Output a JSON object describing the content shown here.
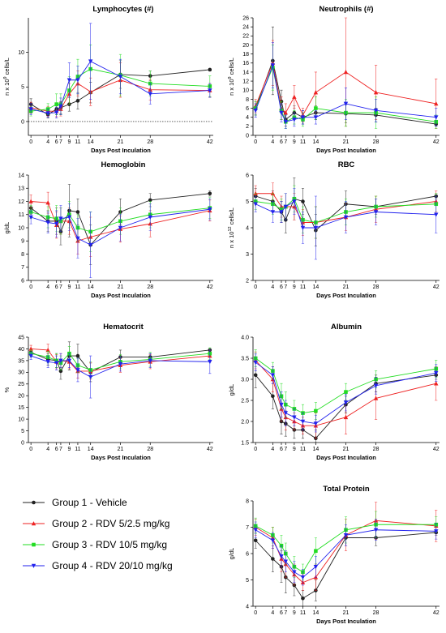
{
  "x_label": "Days Post Inculation",
  "colors": {
    "g1": "#222222",
    "g2": "#ee2222",
    "g3": "#22dd22",
    "g4": "#2222ee"
  },
  "legend": [
    {
      "key": "g1",
      "label": "Group 1 - Vehicle",
      "marker": "circle"
    },
    {
      "key": "g2",
      "label": "Group 2 - RDV 5/2.5 mg/kg",
      "marker": "triangle"
    },
    {
      "key": "g3",
      "label": "Group 3 - RDV 10/5 mg/kg",
      "marker": "square"
    },
    {
      "key": "g4",
      "label": "Group 4 - RDV 20/10 mg/kg",
      "marker": "triangle-down"
    }
  ],
  "chart_data": [
    {
      "id": "lymph",
      "type": "line",
      "title": "Lymphocytes (#)",
      "ylabel": "n x 10^9 cells/L",
      "x": [
        0,
        4,
        6,
        7,
        9,
        11,
        14,
        21,
        28,
        42
      ],
      "xticks": [
        0,
        4,
        6,
        7,
        9,
        11,
        14,
        21,
        28,
        42
      ],
      "ylim": [
        -2,
        15
      ],
      "yticks": [
        0,
        5,
        10
      ],
      "baseline": 0,
      "series": [
        {
          "key": "g1",
          "values": [
            2.5,
            1.0,
            1.8,
            2.0,
            2.5,
            3.0,
            4.2,
            6.8,
            6.6,
            7.5
          ],
          "err": [
            0.8,
            0.5,
            0.8,
            0.9,
            1.0,
            1.2,
            1.5,
            2.0,
            0.7,
            0.2
          ]
        },
        {
          "key": "g2",
          "values": [
            2.0,
            1.5,
            1.5,
            1.8,
            4.0,
            5.5,
            4.3,
            6.0,
            4.6,
            4.5
          ],
          "err": [
            0.8,
            0.7,
            0.8,
            1.0,
            1.5,
            1.8,
            2.0,
            2.5,
            1.5,
            1.0
          ]
        },
        {
          "key": "g3",
          "values": [
            1.5,
            1.8,
            2.5,
            2.5,
            4.5,
            6.5,
            7.6,
            6.7,
            5.5,
            5.1
          ],
          "err": [
            0.7,
            0.8,
            1.5,
            1.5,
            2.0,
            2.5,
            3.5,
            3.0,
            1.8,
            1.5
          ]
        },
        {
          "key": "g4",
          "values": [
            1.8,
            1.2,
            1.3,
            2.2,
            6.0,
            6.0,
            8.7,
            6.5,
            4.0,
            4.5
          ],
          "err": [
            0.8,
            0.6,
            0.8,
            1.2,
            2.5,
            2.0,
            5.5,
            2.5,
            1.5,
            1.0
          ]
        }
      ]
    },
    {
      "id": "neut",
      "type": "line",
      "title": "Neutrophils (#)",
      "ylabel": "n x 10^9 cells/L",
      "x": [
        0,
        4,
        6,
        7,
        9,
        11,
        14,
        21,
        28,
        42
      ],
      "xticks": [
        0,
        4,
        6,
        7,
        9,
        11,
        14,
        21,
        28,
        42
      ],
      "ylim": [
        0,
        26
      ],
      "yticks": [
        0,
        2,
        4,
        6,
        8,
        10,
        12,
        14,
        16,
        18,
        20,
        22,
        24,
        26
      ],
      "baseline": null,
      "series": [
        {
          "key": "g1",
          "values": [
            6.0,
            16.5,
            7.5,
            3.5,
            5.0,
            4.0,
            5.0,
            4.8,
            4.5,
            2.5
          ],
          "err": [
            1.5,
            7.5,
            2.5,
            1.5,
            1.5,
            1.5,
            1.5,
            2.0,
            1.5,
            0.5
          ]
        },
        {
          "key": "g2",
          "values": [
            6.5,
            16.0,
            6.0,
            5.0,
            8.5,
            4.5,
            9.5,
            14.0,
            9.5,
            7.0
          ],
          "err": [
            1.5,
            5.0,
            2.5,
            2.0,
            2.5,
            1.5,
            4.5,
            12.0,
            6.0,
            5.5
          ]
        },
        {
          "key": "g3",
          "values": [
            6.0,
            15.0,
            5.5,
            3.0,
            4.0,
            3.5,
            6.0,
            5.0,
            5.0,
            3.0
          ],
          "err": [
            1.5,
            5.0,
            2.0,
            1.5,
            1.5,
            1.5,
            2.5,
            3.0,
            3.5,
            1.5
          ]
        },
        {
          "key": "g4",
          "values": [
            5.5,
            15.5,
            5.0,
            3.0,
            3.5,
            4.0,
            4.0,
            7.0,
            5.5,
            4.0
          ],
          "err": [
            1.5,
            5.0,
            2.0,
            1.5,
            1.5,
            1.5,
            1.5,
            3.5,
            2.5,
            2.0
          ]
        }
      ]
    },
    {
      "id": "hgb",
      "type": "line",
      "title": "Hemoglobin",
      "ylabel": "g/dL",
      "x": [
        0,
        4,
        6,
        7,
        9,
        11,
        14,
        21,
        28,
        42
      ],
      "xticks": [
        0,
        4,
        6,
        7,
        9,
        11,
        14,
        21,
        28,
        42
      ],
      "ylim": [
        6,
        14
      ],
      "yticks": [
        6,
        7,
        8,
        9,
        10,
        11,
        12,
        13,
        14
      ],
      "baseline": null,
      "series": [
        {
          "key": "g1",
          "values": [
            11.5,
            10.5,
            10.5,
            9.7,
            11.3,
            11.2,
            8.7,
            11.2,
            12.1,
            12.6
          ],
          "err": [
            0.5,
            0.8,
            1.0,
            1.0,
            2.0,
            1.0,
            1.5,
            1.0,
            0.5,
            0.2
          ]
        },
        {
          "key": "g2",
          "values": [
            12.0,
            11.9,
            10.2,
            10.5,
            10.5,
            9.0,
            9.3,
            9.9,
            10.3,
            11.3
          ],
          "err": [
            0.5,
            0.8,
            1.0,
            1.0,
            1.0,
            1.0,
            1.5,
            1.0,
            1.0,
            0.8
          ]
        },
        {
          "key": "g3",
          "values": [
            11.2,
            10.8,
            10.7,
            10.5,
            11.0,
            10.0,
            9.7,
            10.5,
            11.0,
            11.5
          ],
          "err": [
            0.5,
            0.8,
            1.0,
            1.0,
            1.0,
            1.0,
            1.5,
            1.0,
            1.0,
            0.8
          ]
        },
        {
          "key": "g4",
          "values": [
            10.8,
            10.4,
            10.3,
            10.7,
            10.8,
            9.2,
            8.7,
            10.0,
            10.8,
            11.4
          ],
          "err": [
            0.5,
            0.8,
            1.0,
            1.0,
            1.0,
            1.5,
            2.5,
            1.0,
            1.0,
            0.8
          ]
        }
      ]
    },
    {
      "id": "rbc",
      "type": "line",
      "title": "RBC",
      "ylabel": "n x 10^12 cells/L",
      "x": [
        0,
        4,
        6,
        7,
        9,
        11,
        14,
        21,
        28,
        42
      ],
      "xticks": [
        0,
        4,
        6,
        7,
        9,
        11,
        14,
        21,
        28,
        42
      ],
      "ylim": [
        2,
        6
      ],
      "yticks": [
        2,
        3,
        4,
        5,
        6
      ],
      "baseline": null,
      "series": [
        {
          "key": "g1",
          "values": [
            5.2,
            5.0,
            4.6,
            4.3,
            5.1,
            5.0,
            3.9,
            4.9,
            4.8,
            5.2
          ],
          "err": [
            0.3,
            0.4,
            0.4,
            0.5,
            0.8,
            0.5,
            0.6,
            0.5,
            0.3,
            0.1
          ]
        },
        {
          "key": "g2",
          "values": [
            5.3,
            5.3,
            4.8,
            4.8,
            4.8,
            4.2,
            4.2,
            4.4,
            4.7,
            5.0
          ],
          "err": [
            0.3,
            0.4,
            0.4,
            0.5,
            0.5,
            0.5,
            0.6,
            0.5,
            0.5,
            0.4
          ]
        },
        {
          "key": "g3",
          "values": [
            5.0,
            4.9,
            4.7,
            4.8,
            5.1,
            4.3,
            4.2,
            4.6,
            4.8,
            4.9
          ],
          "err": [
            0.3,
            0.4,
            0.4,
            0.5,
            0.5,
            0.5,
            0.6,
            0.5,
            0.4,
            0.4
          ]
        },
        {
          "key": "g4",
          "values": [
            4.9,
            4.6,
            4.6,
            4.8,
            5.0,
            4.0,
            4.0,
            4.4,
            4.6,
            4.5
          ],
          "err": [
            0.3,
            0.4,
            0.4,
            0.5,
            0.5,
            0.6,
            1.2,
            0.6,
            0.5,
            0.7
          ]
        }
      ]
    },
    {
      "id": "hct",
      "type": "line",
      "title": "Hematocrit",
      "ylabel": "%",
      "x": [
        0,
        4,
        6,
        7,
        9,
        11,
        14,
        21,
        28,
        42
      ],
      "xticks": [
        0,
        4,
        6,
        7,
        9,
        11,
        14,
        21,
        28,
        42
      ],
      "ylim": [
        0,
        45
      ],
      "yticks": [
        0,
        5,
        10,
        15,
        20,
        25,
        30,
        35,
        40,
        45
      ],
      "baseline": null,
      "series": [
        {
          "key": "g1",
          "values": [
            38.5,
            35.5,
            35.0,
            30.5,
            37.0,
            37.0,
            30.0,
            36.5,
            36.5,
            39.5
          ],
          "err": [
            1.5,
            2.5,
            3.0,
            3.5,
            6.0,
            5.0,
            4.0,
            3.0,
            1.5,
            0.5
          ]
        },
        {
          "key": "g2",
          "values": [
            40.0,
            39.5,
            34.5,
            35.0,
            34.5,
            30.5,
            30.5,
            33.0,
            34.5,
            37.0
          ],
          "err": [
            1.5,
            2.5,
            3.0,
            3.0,
            3.0,
            3.0,
            3.5,
            3.0,
            3.0,
            2.5
          ]
        },
        {
          "key": "g3",
          "values": [
            38.0,
            36.5,
            35.0,
            34.0,
            38.0,
            33.0,
            31.0,
            34.5,
            35.5,
            38.0
          ],
          "err": [
            1.5,
            2.5,
            3.0,
            3.0,
            3.0,
            3.0,
            3.5,
            3.0,
            3.0,
            2.5
          ]
        },
        {
          "key": "g4",
          "values": [
            37.0,
            34.5,
            34.0,
            35.0,
            35.0,
            31.0,
            28.0,
            33.5,
            35.0,
            34.5
          ],
          "err": [
            1.5,
            2.5,
            3.0,
            3.0,
            3.0,
            5.0,
            9.0,
            3.0,
            3.0,
            5.0
          ]
        }
      ]
    },
    {
      "id": "alb",
      "type": "line",
      "title": "Albumin",
      "ylabel": "g/dL",
      "x": [
        0,
        4,
        6,
        7,
        9,
        11,
        14,
        21,
        28,
        42
      ],
      "xticks": [
        0,
        4,
        6,
        7,
        9,
        11,
        14,
        21,
        28,
        42
      ],
      "ylim": [
        1.5,
        4.0
      ],
      "yticks": [
        1.5,
        2.0,
        2.5,
        3.0,
        3.5,
        4.0
      ],
      "baseline": null,
      "series": [
        {
          "key": "g1",
          "values": [
            3.1,
            2.6,
            2.0,
            1.95,
            1.8,
            1.8,
            1.6,
            2.4,
            2.9,
            3.1
          ],
          "err": [
            0.3,
            0.3,
            0.3,
            0.3,
            0.2,
            0.2,
            0.2,
            0.2,
            0.2,
            0.1
          ]
        },
        {
          "key": "g2",
          "values": [
            3.45,
            3.0,
            2.3,
            2.1,
            2.0,
            1.9,
            1.9,
            2.1,
            2.55,
            2.9
          ],
          "err": [
            0.2,
            0.3,
            0.3,
            0.3,
            0.2,
            0.2,
            0.3,
            0.4,
            0.5,
            0.4
          ]
        },
        {
          "key": "g3",
          "values": [
            3.5,
            3.2,
            2.6,
            2.4,
            2.3,
            2.2,
            2.25,
            2.7,
            3.0,
            3.25
          ],
          "err": [
            0.2,
            0.2,
            0.3,
            0.3,
            0.2,
            0.2,
            0.2,
            0.2,
            0.2,
            0.2
          ]
        },
        {
          "key": "g4",
          "values": [
            3.4,
            3.1,
            2.4,
            2.2,
            2.1,
            2.0,
            1.95,
            2.45,
            2.85,
            3.15
          ],
          "err": [
            0.2,
            0.2,
            0.3,
            0.3,
            0.2,
            0.2,
            0.2,
            0.2,
            0.2,
            0.2
          ]
        }
      ]
    },
    {
      "id": "tp",
      "type": "line",
      "title": "Total  Protein",
      "ylabel": "g/dL",
      "x": [
        0,
        4,
        6,
        7,
        9,
        11,
        14,
        21,
        28,
        42
      ],
      "xticks": [
        0,
        4,
        6,
        7,
        9,
        11,
        14,
        21,
        28,
        42
      ],
      "ylim": [
        4,
        8
      ],
      "yticks": [
        4,
        5,
        6,
        7,
        8
      ],
      "baseline": null,
      "series": [
        {
          "key": "g1",
          "values": [
            6.5,
            5.8,
            5.5,
            5.1,
            4.8,
            4.3,
            4.6,
            6.6,
            6.6,
            6.8
          ],
          "err": [
            0.3,
            0.5,
            0.6,
            0.6,
            0.4,
            0.3,
            0.4,
            0.3,
            0.3,
            0.1
          ]
        },
        {
          "key": "g2",
          "values": [
            7.0,
            6.6,
            5.8,
            5.6,
            5.2,
            4.9,
            5.1,
            6.7,
            7.25,
            7.05
          ],
          "err": [
            0.3,
            0.4,
            0.5,
            0.5,
            0.4,
            0.3,
            0.5,
            0.6,
            0.7,
            0.6
          ]
        },
        {
          "key": "g3",
          "values": [
            7.05,
            6.7,
            6.3,
            6.0,
            5.5,
            5.3,
            6.1,
            6.9,
            7.1,
            7.1
          ],
          "err": [
            0.3,
            0.3,
            0.4,
            0.4,
            0.4,
            0.3,
            0.5,
            0.5,
            0.5,
            0.3
          ]
        },
        {
          "key": "g4",
          "values": [
            6.9,
            6.5,
            5.9,
            5.7,
            5.3,
            5.1,
            5.5,
            6.7,
            6.9,
            6.85
          ],
          "err": [
            0.3,
            0.3,
            0.4,
            0.4,
            0.4,
            0.3,
            0.4,
            0.4,
            0.4,
            0.3
          ]
        }
      ]
    }
  ]
}
